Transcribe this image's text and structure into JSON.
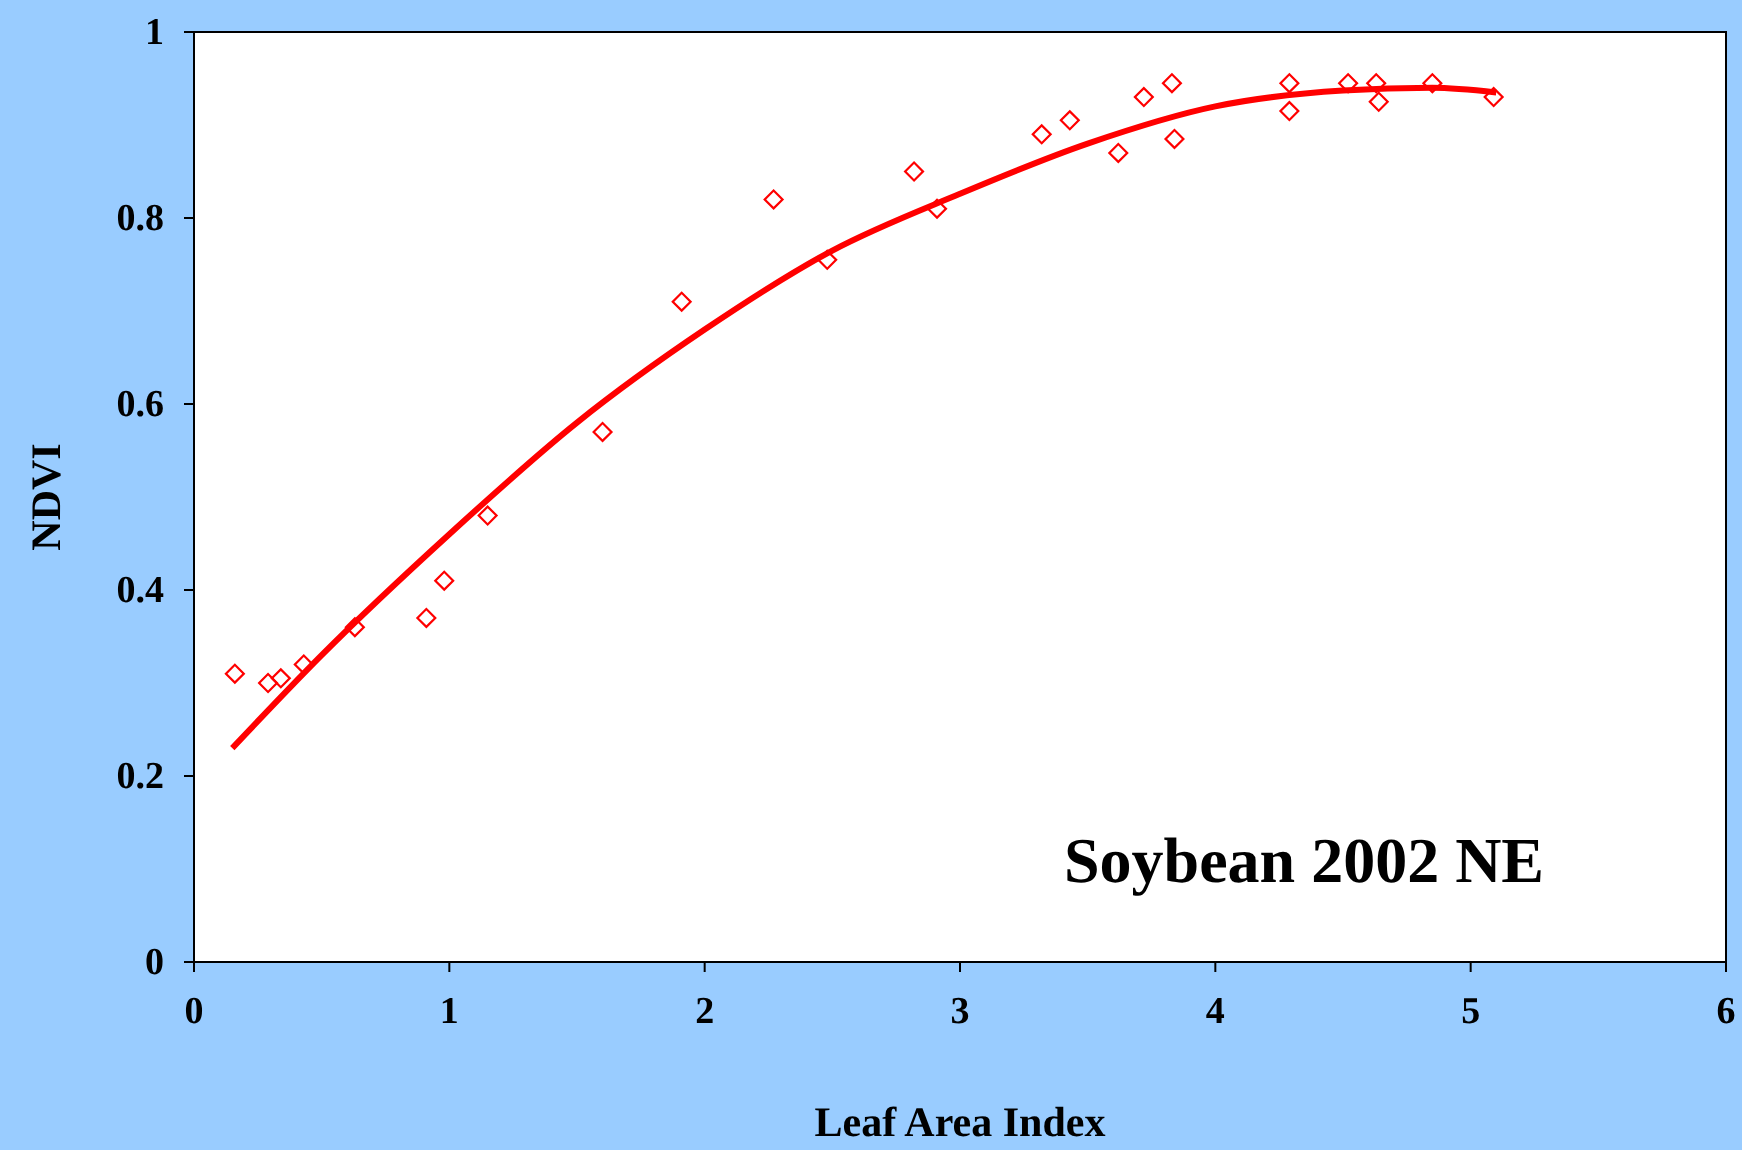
{
  "chart_data": {
    "type": "scatter",
    "xlabel": "Leaf Area Index",
    "ylabel": "NDVI",
    "annotations": [
      "Soybean 2002 NE"
    ],
    "xlim": [
      0,
      6
    ],
    "ylim": [
      0,
      1
    ],
    "xticks": [
      0,
      1,
      2,
      3,
      4,
      5,
      6
    ],
    "yticks": [
      0,
      0.2,
      0.4,
      0.6,
      0.8,
      1
    ],
    "grid": false,
    "series": [
      {
        "color": "#ff0000",
        "marker": "diamond",
        "x": [
          0.16,
          0.29,
          0.34,
          0.43,
          0.63,
          0.91,
          0.98,
          1.15,
          1.6,
          1.91,
          2.27,
          2.48,
          2.82,
          2.91,
          3.32,
          3.43,
          3.62,
          3.72,
          3.83,
          3.84,
          4.29,
          4.29,
          4.52,
          4.63,
          4.64,
          4.85,
          5.09
        ],
        "values": [
          0.31,
          0.3,
          0.305,
          0.32,
          0.36,
          0.37,
          0.41,
          0.48,
          0.57,
          0.71,
          0.82,
          0.755,
          0.85,
          0.81,
          0.89,
          0.905,
          0.87,
          0.93,
          0.945,
          0.885,
          0.945,
          0.915,
          0.945,
          0.945,
          0.925,
          0.945,
          0.93
        ]
      },
      {
        "type": "line",
        "color": "#ff0000",
        "line_style": "solid",
        "x": [
          0.15,
          0.5,
          1,
          1.5,
          2,
          2.5,
          3,
          3.5,
          4,
          4.5,
          4.85,
          5.1
        ],
        "values": [
          0.23,
          0.33,
          0.46,
          0.58,
          0.68,
          0.765,
          0.826,
          0.88,
          0.92,
          0.937,
          0.94,
          0.935
        ]
      }
    ]
  }
}
